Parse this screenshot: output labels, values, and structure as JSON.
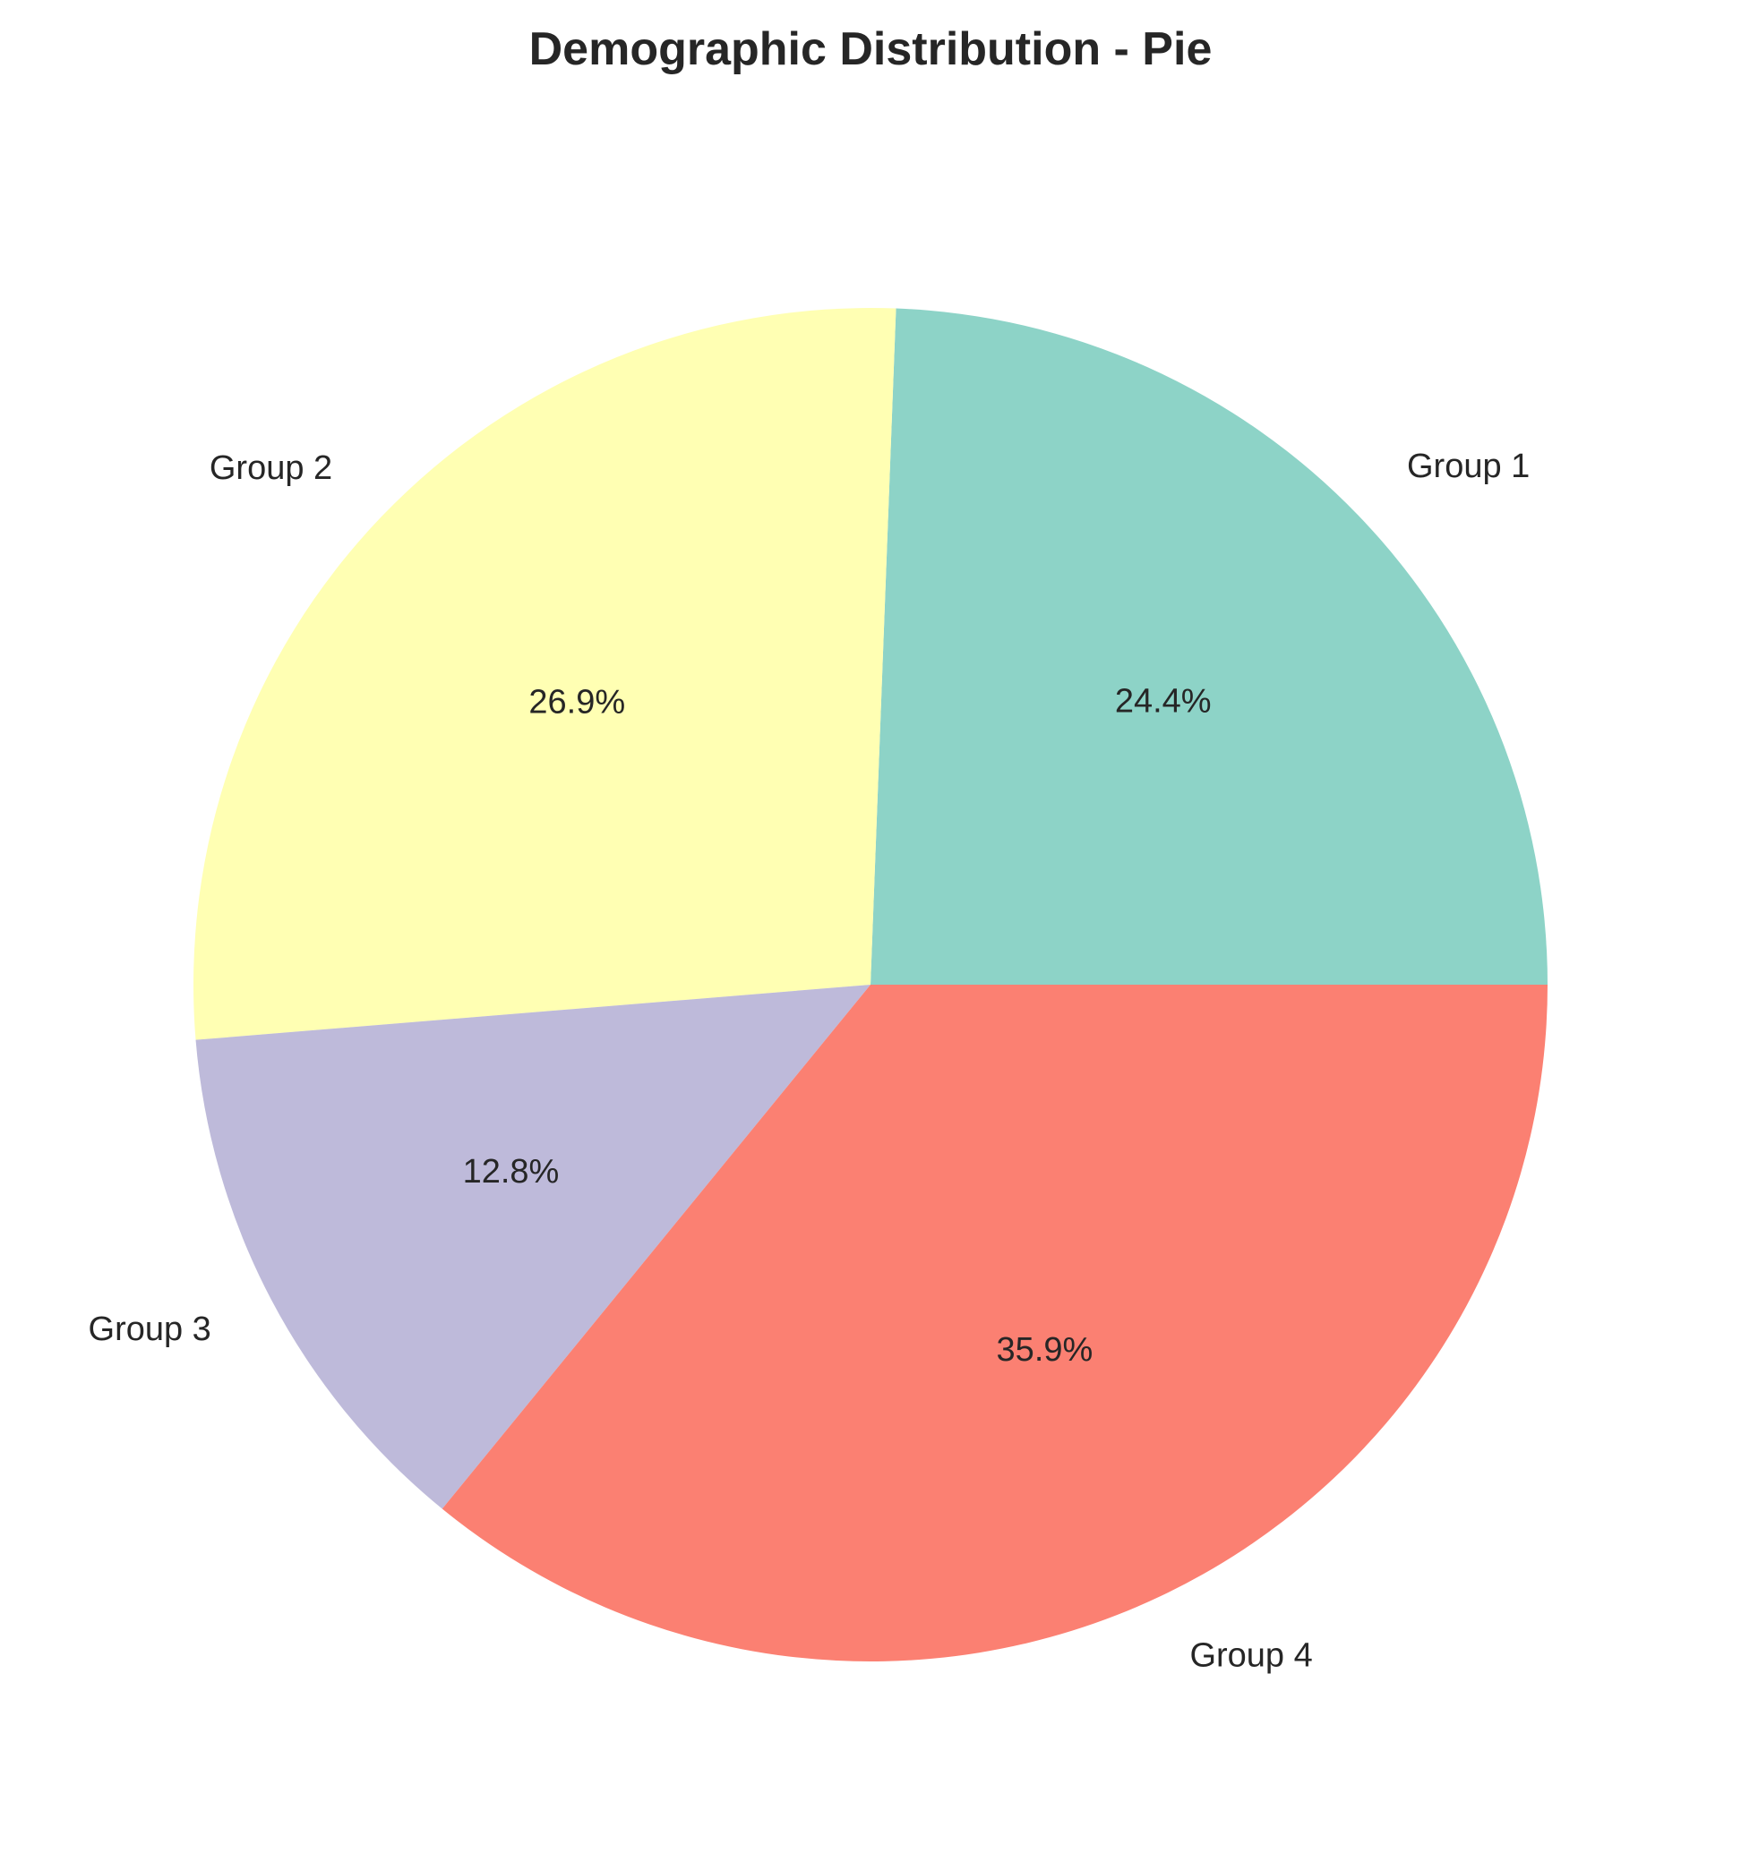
{
  "chart_data": {
    "type": "pie",
    "title": "Demographic Distribution - Pie",
    "categories": [
      "Group 1",
      "Group 2",
      "Group 3",
      "Group 4"
    ],
    "values": [
      24.4,
      26.9,
      12.8,
      35.9
    ],
    "value_labels": [
      "24.4%",
      "26.9%",
      "12.8%",
      "35.9%"
    ],
    "colors": [
      "#8dd3c7",
      "#ffffb3",
      "#bebada",
      "#fb8072"
    ],
    "start_angle_deg": 0,
    "direction": "counterclockwise",
    "legend": "none"
  }
}
